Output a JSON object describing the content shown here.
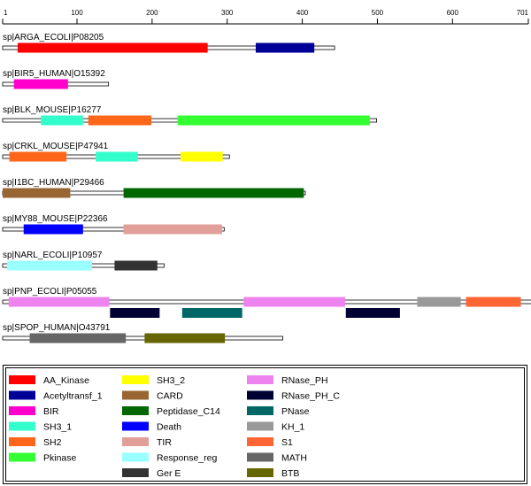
{
  "ruler": {
    "min": 1,
    "max": 701,
    "ticks": [
      1,
      100,
      200,
      300,
      400,
      500,
      600,
      701
    ]
  },
  "proteins": [
    {
      "id": "arga",
      "label": "sp|ARGA_ECOLI|P08205",
      "length": 443,
      "domains": [
        {
          "family": "AA_Kinase",
          "start": 21,
          "end": 274,
          "track": 0
        },
        {
          "family": "Acetyltransf_1",
          "start": 338,
          "end": 416,
          "track": 0
        }
      ]
    },
    {
      "id": "bir5",
      "label": "sp|BIR5_HUMAN|O15392",
      "length": 142,
      "domains": [
        {
          "family": "BIR",
          "start": 16,
          "end": 88,
          "track": 0
        }
      ]
    },
    {
      "id": "blk",
      "label": "sp|BLK_MOUSE|P16277",
      "length": 499,
      "domains": [
        {
          "family": "SH3_1",
          "start": 52,
          "end": 108,
          "track": 0
        },
        {
          "family": "SH2",
          "start": 115,
          "end": 199,
          "track": 0
        },
        {
          "family": "Pkinase",
          "start": 234,
          "end": 490,
          "track": 0
        }
      ]
    },
    {
      "id": "crkl",
      "label": "sp|CRKL_MOUSE|P47941",
      "length": 303,
      "domains": [
        {
          "family": "SH2",
          "start": 10,
          "end": 86,
          "track": 0
        },
        {
          "family": "SH3_1",
          "start": 125,
          "end": 181,
          "track": 0
        },
        {
          "family": "SH3_2",
          "start": 238,
          "end": 294,
          "track": 0
        }
      ]
    },
    {
      "id": "i1bc",
      "label": "sp|I1BC_HUMAN|P29466",
      "length": 404,
      "domains": [
        {
          "family": "CARD",
          "start": 1,
          "end": 91,
          "track": 0
        },
        {
          "family": "Peptidase_C14",
          "start": 162,
          "end": 402,
          "track": 0
        }
      ]
    },
    {
      "id": "my88",
      "label": "sp|MY88_MOUSE|P22366",
      "length": 296,
      "domains": [
        {
          "family": "Death",
          "start": 29,
          "end": 108,
          "track": 0
        },
        {
          "family": "TIR",
          "start": 162,
          "end": 293,
          "track": 0
        }
      ]
    },
    {
      "id": "narl",
      "label": "sp|NARL_ECOLI|P10957",
      "length": 216,
      "domains": [
        {
          "family": "Response_reg",
          "start": 7,
          "end": 120,
          "track": 0
        },
        {
          "family": "Ger E",
          "start": 150,
          "end": 207,
          "track": 0
        }
      ]
    },
    {
      "id": "pnp",
      "label": "sp|PNP_ECOLI|P05055",
      "length": 711,
      "domains": [
        {
          "family": "RNase_PH",
          "start": 9,
          "end": 143,
          "track": 0
        },
        {
          "family": "RNase_PH_C",
          "start": 144,
          "end": 210,
          "track": 1
        },
        {
          "family": "PNase",
          "start": 240,
          "end": 320,
          "track": 1
        },
        {
          "family": "RNase_PH",
          "start": 322,
          "end": 457,
          "track": 0
        },
        {
          "family": "RNase_PH_C",
          "start": 458,
          "end": 530,
          "track": 1
        },
        {
          "family": "KH_1",
          "start": 553,
          "end": 611,
          "track": 0
        },
        {
          "family": "S1",
          "start": 618,
          "end": 691,
          "track": 0
        }
      ]
    },
    {
      "id": "spop",
      "label": "sp|SPOP_HUMAN|O43791",
      "length": 374,
      "domains": [
        {
          "family": "MATH",
          "start": 37,
          "end": 165,
          "track": 0
        },
        {
          "family": "BTB",
          "start": 190,
          "end": 297,
          "track": 0
        }
      ]
    }
  ],
  "legend": {
    "columns": [
      [
        {
          "family": "AA_Kinase",
          "color": "#ff0000"
        },
        {
          "family": "Acetyltransf_1",
          "color": "#000099"
        },
        {
          "family": "BIR",
          "color": "#ff00cc"
        },
        {
          "family": "SH3_1",
          "color": "#33ffcc"
        },
        {
          "family": "SH2",
          "color": "#ff6619"
        },
        {
          "family": "Pkinase",
          "color": "#33ff33"
        }
      ],
      [
        {
          "family": "SH3_2",
          "color": "#ffff00"
        },
        {
          "family": "CARD",
          "color": "#996633"
        },
        {
          "family": "Peptidase_C14",
          "color": "#006600"
        },
        {
          "family": "Death",
          "color": "#0000ff"
        },
        {
          "family": "TIR",
          "color": "#e0a099"
        },
        {
          "family": "Response_reg",
          "color": "#99ffff"
        },
        {
          "family": "Ger E",
          "color": "#333333"
        }
      ],
      [
        {
          "family": "RNase_PH",
          "color": "#ee82ee"
        },
        {
          "family": "RNase_PH_C",
          "color": "#000033"
        },
        {
          "family": "PNase",
          "color": "#006666"
        },
        {
          "family": "KH_1",
          "color": "#999999"
        },
        {
          "family": "S1",
          "color": "#ff6633"
        },
        {
          "family": "MATH",
          "color": "#666666"
        },
        {
          "family": "BTB",
          "color": "#666600"
        }
      ]
    ]
  }
}
